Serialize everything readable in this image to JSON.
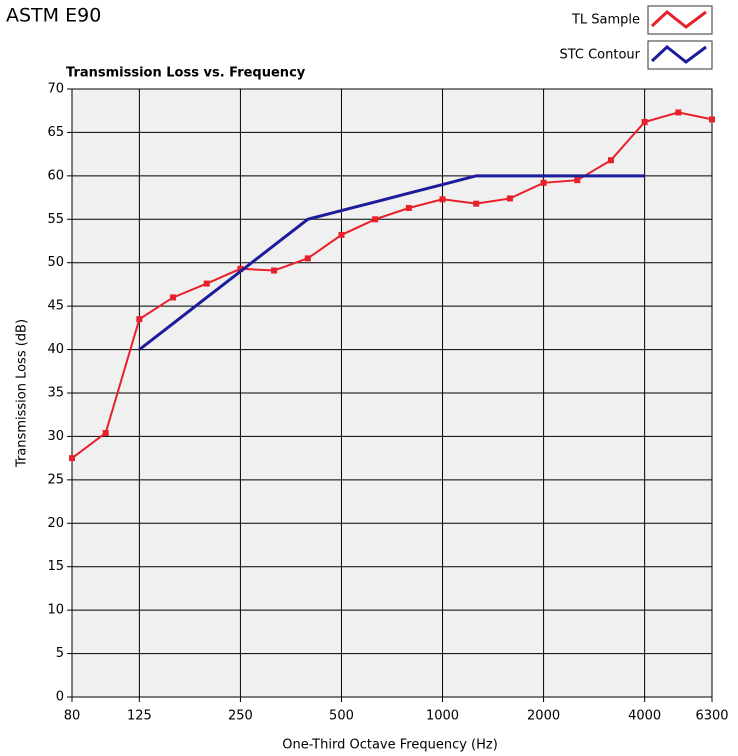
{
  "heading": "ASTM E90",
  "chart_data": {
    "type": "line",
    "title": "Transmission Loss vs. Frequency",
    "x_label": "One-Third Octave Frequency (Hz)",
    "y_label": "Transmission Loss (dB)",
    "categories": [
      "80",
      null,
      "125",
      null,
      null,
      "250",
      null,
      null,
      "500",
      null,
      null,
      "1000",
      null,
      null,
      "2000",
      null,
      null,
      "4000",
      null,
      "6300"
    ],
    "series": [
      {
        "name": "TL Sample",
        "color": "#e8202a",
        "values": [
          27.5,
          30.4,
          43.5,
          46,
          47.6,
          49.3,
          49.1,
          50.5,
          53.2,
          55,
          56.3,
          57.3,
          56.8,
          57.4,
          59.2,
          59.5,
          61.8,
          66.2,
          67.3,
          66.5
        ]
      },
      {
        "name": "STC Contour",
        "color": "#1c1c9c",
        "values": [
          null,
          null,
          40,
          43,
          46,
          49,
          52,
          55,
          56,
          57,
          58,
          59,
          60,
          60,
          60,
          60,
          60,
          60,
          null,
          null
        ]
      }
    ],
    "ylim": [
      0,
      70
    ],
    "yticks": [
      0,
      5,
      10,
      15,
      20,
      25,
      30,
      35,
      40,
      45,
      50,
      55,
      60,
      65,
      70
    ],
    "grid": true,
    "legend": "top-right"
  }
}
